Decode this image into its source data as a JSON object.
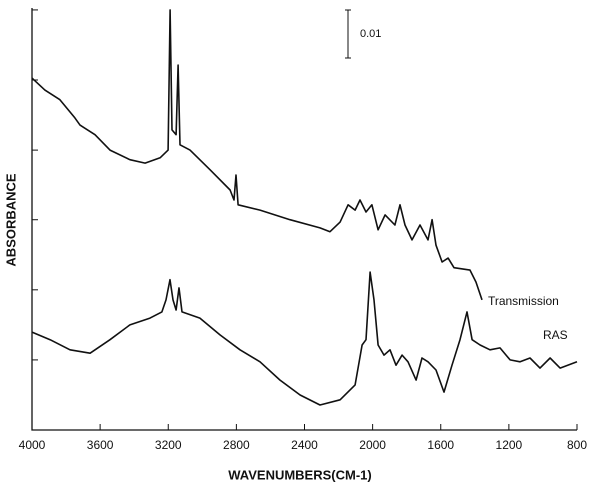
{
  "chart_data": {
    "type": "line",
    "x_label": "WAVENUMBERS(CM-1)",
    "y_label": "ABSORBANCE",
    "scale_bar": 0.01,
    "xlim": [
      4000,
      800
    ],
    "xticks": [
      4000,
      3600,
      3200,
      2800,
      2400,
      2000,
      1600,
      1200,
      800
    ],
    "ylim": [
      0,
      0.0879
    ],
    "yticks": [
      0.0146,
      0.0292,
      0.0438,
      0.0583,
      0.0729,
      0.0875
    ],
    "series": [
      {
        "name": "Transmission",
        "color": "#111111",
        "x": [
          4000,
          3924,
          3836,
          3748,
          3718,
          3630,
          3542,
          3425,
          3336,
          3248,
          3201,
          3189,
          3178,
          3154,
          3142,
          3131,
          3072,
          2954,
          2837,
          2814,
          2802,
          2790,
          2661,
          2485,
          2309,
          2250,
          2191,
          2144,
          2103,
          2074,
          2039,
          2004,
          1968,
          1927,
          1869,
          1839,
          1810,
          1769,
          1722,
          1675,
          1651,
          1628,
          1592,
          1557,
          1522,
          1428,
          1393,
          1358
        ],
        "values": [
          0.0733,
          0.0708,
          0.0688,
          0.065,
          0.0635,
          0.0615,
          0.0583,
          0.0563,
          0.0556,
          0.0567,
          0.0583,
          0.0875,
          0.0625,
          0.0615,
          0.076,
          0.0594,
          0.0583,
          0.0542,
          0.05,
          0.0479,
          0.0531,
          0.0469,
          0.0458,
          0.0438,
          0.0421,
          0.0413,
          0.0433,
          0.0469,
          0.0458,
          0.0479,
          0.0454,
          0.0469,
          0.0417,
          0.0448,
          0.0427,
          0.0469,
          0.0427,
          0.0396,
          0.0427,
          0.0396,
          0.0438,
          0.0385,
          0.035,
          0.0358,
          0.0338,
          0.0333,
          0.0308,
          0.0271
        ]
      },
      {
        "name": "RAS",
        "color": "#111111",
        "x": [
          4000,
          3894,
          3777,
          3659,
          3542,
          3425,
          3307,
          3237,
          3213,
          3190,
          3172,
          3154,
          3137,
          3119,
          3014,
          2896,
          2779,
          2661,
          2544,
          2426,
          2309,
          2191,
          2103,
          2062,
          2039,
          2015,
          1992,
          1968,
          1933,
          1898,
          1863,
          1827,
          1792,
          1745,
          1710,
          1675,
          1628,
          1581,
          1534,
          1487,
          1446,
          1416,
          1369,
          1311,
          1252,
          1193,
          1134,
          1076,
          1017,
          958,
          899,
          800
        ],
        "values": [
          0.0204,
          0.0188,
          0.0167,
          0.016,
          0.0188,
          0.0219,
          0.0233,
          0.0246,
          0.0271,
          0.0313,
          0.0271,
          0.025,
          0.0296,
          0.0246,
          0.0233,
          0.0198,
          0.0167,
          0.0142,
          0.0104,
          0.0073,
          0.0052,
          0.0063,
          0.0094,
          0.0177,
          0.0188,
          0.0329,
          0.0271,
          0.0177,
          0.0156,
          0.0167,
          0.0135,
          0.0156,
          0.0142,
          0.0104,
          0.015,
          0.0142,
          0.0125,
          0.0079,
          0.0135,
          0.0188,
          0.0246,
          0.0188,
          0.0177,
          0.0167,
          0.0171,
          0.0146,
          0.0142,
          0.015,
          0.0129,
          0.015,
          0.0129,
          0.0142
        ]
      }
    ]
  }
}
